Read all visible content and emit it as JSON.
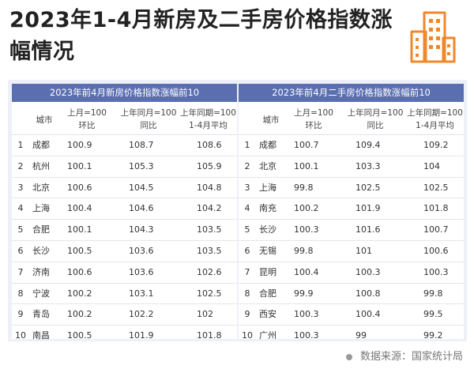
{
  "title": "2023年1-4月新房及二手房价格指数涨幅情况",
  "source": "数据来源：国家统计局",
  "colors": {
    "header_bg": "#5b6fb0",
    "accent_logo": "#f0882a"
  },
  "tables": [
    {
      "heading": "2023年前4月新房价格指数涨幅前10",
      "columns": {
        "city": "城市",
        "v1": [
          "上月=100",
          "环比"
        ],
        "v2": [
          "上年同月=100",
          "同比"
        ],
        "v3": [
          "上年同期=100",
          "1-4月平均"
        ]
      },
      "rows": [
        {
          "rank": "1",
          "city": "成都",
          "v1": "100.9",
          "v2": "108.7",
          "v3": "108.6"
        },
        {
          "rank": "2",
          "city": "杭州",
          "v1": "100.1",
          "v2": "105.3",
          "v3": "105.9"
        },
        {
          "rank": "3",
          "city": "北京",
          "v1": "100.6",
          "v2": "104.5",
          "v3": "104.8"
        },
        {
          "rank": "4",
          "city": "上海",
          "v1": "100.4",
          "v2": "104.6",
          "v3": "104.2"
        },
        {
          "rank": "5",
          "city": "合肥",
          "v1": "100.1",
          "v2": "104.3",
          "v3": "103.5"
        },
        {
          "rank": "6",
          "city": "长沙",
          "v1": "100.5",
          "v2": "103.6",
          "v3": "103.5"
        },
        {
          "rank": "7",
          "city": "济南",
          "v1": "100.6",
          "v2": "103.6",
          "v3": "102.6"
        },
        {
          "rank": "8",
          "city": "宁波",
          "v1": "100.2",
          "v2": "103.1",
          "v3": "102.5"
        },
        {
          "rank": "9",
          "city": "青岛",
          "v1": "100.2",
          "v2": "102.2",
          "v3": "102"
        },
        {
          "rank": "10",
          "city": "南昌",
          "v1": "100.5",
          "v2": "101.9",
          "v3": "101.8"
        }
      ]
    },
    {
      "heading": "2023年前4月二手房价格指数涨幅前10",
      "columns": {
        "city": "城市",
        "v1": [
          "上月=100",
          "环比"
        ],
        "v2": [
          "上年同月=100",
          "同比"
        ],
        "v3": [
          "上年同期=100",
          "1-4月平均"
        ]
      },
      "rows": [
        {
          "rank": "1",
          "city": "成都",
          "v1": "100.7",
          "v2": "109.4",
          "v3": "109.2"
        },
        {
          "rank": "2",
          "city": "北京",
          "v1": "100.1",
          "v2": "103.3",
          "v3": "104"
        },
        {
          "rank": "3",
          "city": "上海",
          "v1": "99.8",
          "v2": "102.5",
          "v3": "102.5"
        },
        {
          "rank": "4",
          "city": "南充",
          "v1": "100.2",
          "v2": "101.9",
          "v3": "101.8"
        },
        {
          "rank": "5",
          "city": "长沙",
          "v1": "100.3",
          "v2": "101.6",
          "v3": "100.7"
        },
        {
          "rank": "6",
          "city": "无锡",
          "v1": "99.8",
          "v2": "101",
          "v3": "100.6"
        },
        {
          "rank": "7",
          "city": "昆明",
          "v1": "100.4",
          "v2": "100.3",
          "v3": "100.3"
        },
        {
          "rank": "8",
          "city": "合肥",
          "v1": "99.9",
          "v2": "100.8",
          "v3": "99.8"
        },
        {
          "rank": "9",
          "city": "西安",
          "v1": "100.3",
          "v2": "100.4",
          "v3": "99.5"
        },
        {
          "rank": "10",
          "city": "广州",
          "v1": "100.3",
          "v2": "99",
          "v3": "99.2"
        }
      ]
    }
  ]
}
